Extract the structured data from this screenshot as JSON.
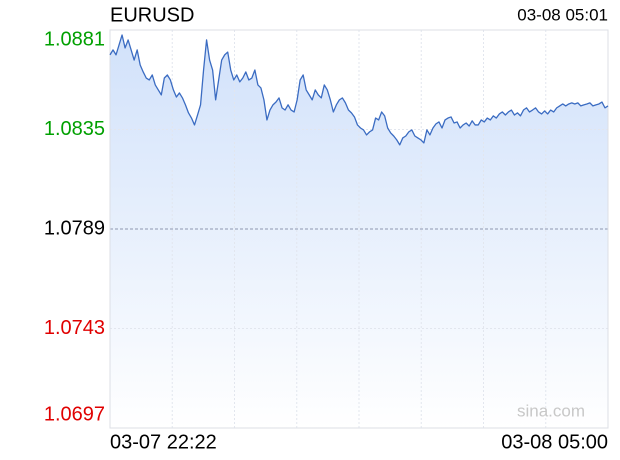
{
  "chart_data": {
    "type": "line",
    "title": "EURUSD",
    "update_time": "03-08 05:01",
    "start_label": "03-07 22:22",
    "end_label": "03-08 05:00",
    "watermark": "sina.com",
    "color": "#3b6cc2",
    "fill_color": "#cfe0fa",
    "up_color": "#00a000",
    "down_color": "#e00000",
    "flat_color": "#000000",
    "x_grid_divisions": 8,
    "ylim": [
      1.0697,
      1.0881
    ],
    "yticks": [
      1.0697,
      1.0743,
      1.0789,
      1.0835,
      1.0881
    ],
    "grid": true,
    "values": [
      1.08695,
      1.08718,
      1.08695,
      1.08741,
      1.08787,
      1.08727,
      1.08764,
      1.08718,
      1.08671,
      1.08718,
      1.08648,
      1.08616,
      1.08588,
      1.08579,
      1.08602,
      1.08556,
      1.08533,
      1.0851,
      1.08588,
      1.08602,
      1.08579,
      1.08533,
      1.085,
      1.08519,
      1.08496,
      1.08464,
      1.08427,
      1.08403,
      1.08371,
      1.08417,
      1.08464,
      1.08625,
      1.08764,
      1.08671,
      1.08625,
      1.08487,
      1.08579,
      1.08671,
      1.08695,
      1.08708,
      1.08625,
      1.08579,
      1.08602,
      1.0857,
      1.08588,
      1.08616,
      1.08579,
      1.08588,
      1.08625,
      1.08556,
      1.08542,
      1.08487,
      1.08394,
      1.0844,
      1.08464,
      1.08477,
      1.08496,
      1.0845,
      1.0844,
      1.08464,
      1.0844,
      1.08431,
      1.08487,
      1.08579,
      1.08602,
      1.08533,
      1.0851,
      1.08487,
      1.08533,
      1.0851,
      1.08496,
      1.08556,
      1.08533,
      1.08487,
      1.08431,
      1.08464,
      1.08487,
      1.08496,
      1.08473,
      1.0844,
      1.08427,
      1.08408,
      1.08371,
      1.08357,
      1.08348,
      1.08325,
      1.08339,
      1.08348,
      1.08403,
      1.08394,
      1.08431,
      1.08413,
      1.08357,
      1.08334,
      1.0832,
      1.08302,
      1.08279,
      1.08311,
      1.0832,
      1.08339,
      1.08348,
      1.0832,
      1.08311,
      1.08302,
      1.08288,
      1.08348,
      1.08325,
      1.08357,
      1.08376,
      1.08385,
      1.08357,
      1.08394,
      1.08403,
      1.08408,
      1.0838,
      1.08385,
      1.08357,
      1.08371,
      1.0838,
      1.08366,
      1.0839,
      1.08371,
      1.08371,
      1.08394,
      1.08385,
      1.08403,
      1.08394,
      1.08413,
      1.08403,
      1.08422,
      1.08431,
      1.08417,
      1.08431,
      1.0844,
      1.08417,
      1.08427,
      1.08413,
      1.0844,
      1.0845,
      1.08431,
      1.0844,
      1.0845,
      1.08431,
      1.08422,
      1.08436,
      1.08422,
      1.0844,
      1.08431,
      1.0845,
      1.08459,
      1.08468,
      1.08459,
      1.08468,
      1.08473,
      1.08468,
      1.08473,
      1.08459,
      1.08464,
      1.08468,
      1.08473,
      1.08459,
      1.08464,
      1.08468,
      1.08477,
      1.0845,
      1.08459
    ]
  }
}
